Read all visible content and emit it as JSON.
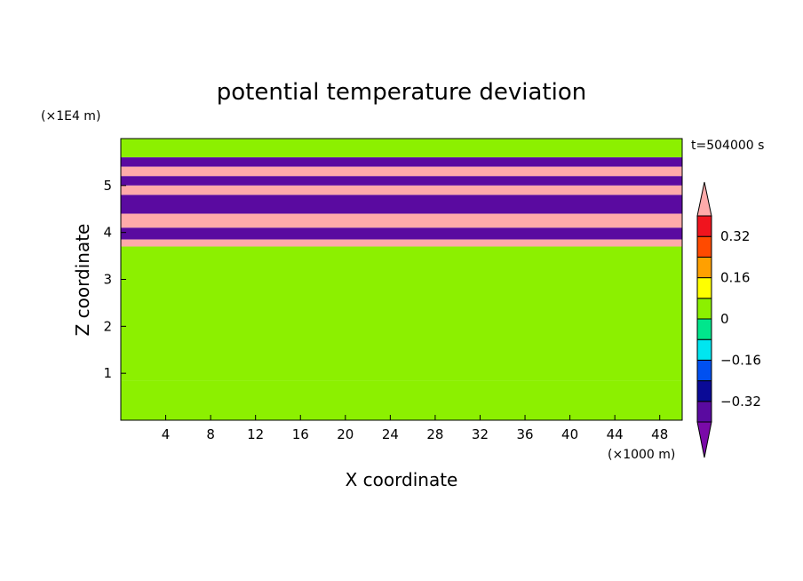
{
  "chart_data": {
    "type": "heatmap",
    "title": "potential temperature deviation",
    "xlabel": "X coordinate",
    "ylabel": "Z coordinate",
    "x_unit_label": "(×1000 m)",
    "y_unit_label": "(×1E4 m)",
    "time_label": "t=504000 s",
    "xlim": [
      0,
      50
    ],
    "ylim": [
      0,
      6
    ],
    "x_ticks": [
      "4",
      "8",
      "12",
      "16",
      "20",
      "24",
      "28",
      "32",
      "36",
      "40",
      "44",
      "48"
    ],
    "y_ticks": [
      "1",
      "2",
      "3",
      "4",
      "5"
    ],
    "colorbar": {
      "levels": [
        -0.4,
        -0.32,
        -0.24,
        -0.16,
        -0.08,
        0,
        0.08,
        0.16,
        0.24,
        0.32,
        0.4
      ],
      "colors": [
        "#5a0aa0",
        "#0a0a96",
        "#0050f0",
        "#00e6f0",
        "#00e68c",
        "#8cf000",
        "#ffff00",
        "#ffa000",
        "#ff4a00",
        "#f0141e",
        "#ffaaaa"
      ],
      "labels": [
        "-0.32",
        "-0.16",
        "0",
        "0.16",
        "0.32"
      ],
      "under_color": "#7a0aa8",
      "over_color": "#ffaaaa"
    },
    "field_description_bands": [
      {
        "z_range": [
          5.6,
          6.0
        ],
        "value": 0.04
      },
      {
        "z_range": [
          5.4,
          5.6
        ],
        "value": -0.4
      },
      {
        "z_range": [
          5.2,
          5.4
        ],
        "value": 0.4
      },
      {
        "z_range": [
          5.0,
          5.2
        ],
        "value": -0.4
      },
      {
        "z_range": [
          4.8,
          5.0
        ],
        "value": 0.4
      },
      {
        "z_range": [
          4.4,
          4.8
        ],
        "value": -0.4
      },
      {
        "z_range": [
          4.1,
          4.4
        ],
        "value": 0.4
      },
      {
        "z_range": [
          3.85,
          4.1
        ],
        "value": -0.4
      },
      {
        "z_range": [
          3.7,
          3.85
        ],
        "value": 0.4
      },
      {
        "z_range": [
          0.85,
          3.7
        ],
        "value": 0.04
      },
      {
        "z_range": [
          0.0,
          0.85
        ],
        "value": 0.02
      }
    ]
  }
}
